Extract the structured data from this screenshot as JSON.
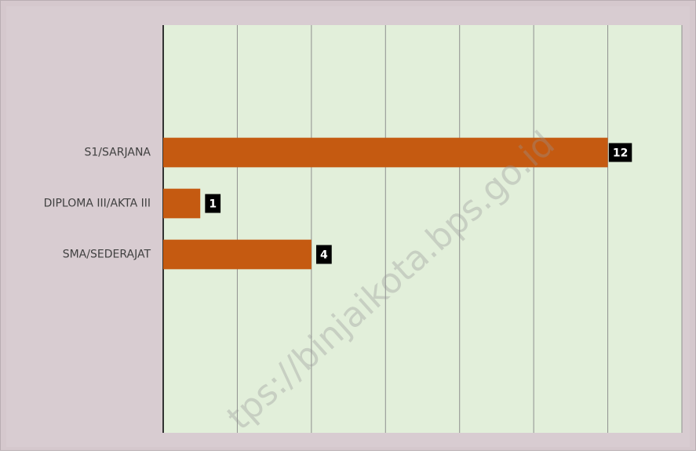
{
  "chart_data": {
    "type": "barh",
    "categories": [
      null,
      null,
      "S1/SARJANA",
      "DIPLOMA III/AKTA III",
      "SMA/SEDERAJAT",
      null,
      null,
      null
    ],
    "values": [
      null,
      null,
      12,
      1,
      4,
      null,
      null,
      null
    ],
    "color": "#c55a11",
    "xlim": [
      0,
      14
    ],
    "xticks": [
      0,
      2,
      4,
      6,
      8,
      10,
      12,
      14
    ],
    "grid": true,
    "watermark": "tps://binjaikota.bps.go.id"
  }
}
